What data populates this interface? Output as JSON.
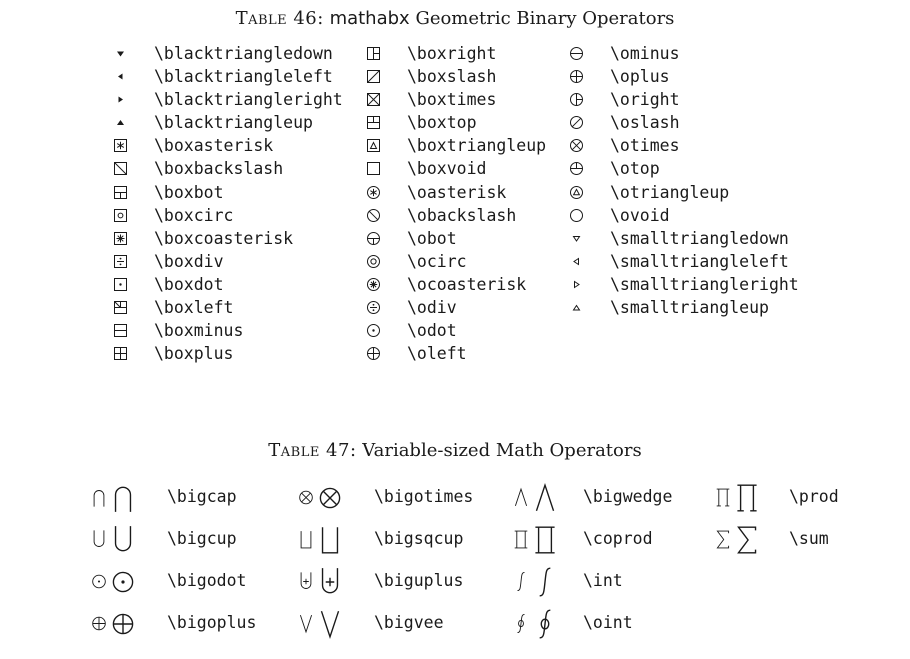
{
  "table46": {
    "caption_prefix": "Table 46:",
    "caption_pkg": "mathabx",
    "caption_rest": "Geometric Binary Operators",
    "columns": [
      [
        {
          "cmd": "\\blacktriangledown",
          "icon": "black-triangle-down-icon"
        },
        {
          "cmd": "\\blacktriangleleft",
          "icon": "black-triangle-left-icon"
        },
        {
          "cmd": "\\blacktriangleright",
          "icon": "black-triangle-right-icon"
        },
        {
          "cmd": "\\blacktriangleup",
          "icon": "black-triangle-up-icon"
        },
        {
          "cmd": "\\boxasterisk",
          "icon": "box-asterisk-icon"
        },
        {
          "cmd": "\\boxbackslash",
          "icon": "box-backslash-icon"
        },
        {
          "cmd": "\\boxbot",
          "icon": "box-bot-icon"
        },
        {
          "cmd": "\\boxcirc",
          "icon": "box-circ-icon"
        },
        {
          "cmd": "\\boxcoasterisk",
          "icon": "box-coasterisk-icon"
        },
        {
          "cmd": "\\boxdiv",
          "icon": "box-div-icon"
        },
        {
          "cmd": "\\boxdot",
          "icon": "box-dot-icon"
        },
        {
          "cmd": "\\boxleft",
          "icon": "box-left-icon"
        },
        {
          "cmd": "\\boxminus",
          "icon": "box-minus-icon"
        },
        {
          "cmd": "\\boxplus",
          "icon": "box-plus-icon"
        }
      ],
      [
        {
          "cmd": "\\boxright",
          "icon": "box-right-icon"
        },
        {
          "cmd": "\\boxslash",
          "icon": "box-slash-icon"
        },
        {
          "cmd": "\\boxtimes",
          "icon": "box-times-icon"
        },
        {
          "cmd": "\\boxtop",
          "icon": "box-top-icon"
        },
        {
          "cmd": "\\boxtriangleup",
          "icon": "box-triangle-up-icon"
        },
        {
          "cmd": "\\boxvoid",
          "icon": "box-void-icon"
        },
        {
          "cmd": "\\oasterisk",
          "icon": "circle-asterisk-icon"
        },
        {
          "cmd": "\\obackslash",
          "icon": "circle-backslash-icon"
        },
        {
          "cmd": "\\obot",
          "icon": "circle-bot-icon"
        },
        {
          "cmd": "\\ocirc",
          "icon": "circle-circ-icon"
        },
        {
          "cmd": "\\ocoasterisk",
          "icon": "circle-coasterisk-icon"
        },
        {
          "cmd": "\\odiv",
          "icon": "circle-div-icon"
        },
        {
          "cmd": "\\odot",
          "icon": "circle-dot-icon"
        },
        {
          "cmd": "\\oleft",
          "icon": "circle-left-icon"
        }
      ],
      [
        {
          "cmd": "\\ominus",
          "icon": "circle-minus-icon"
        },
        {
          "cmd": "\\oplus",
          "icon": "circle-plus-icon"
        },
        {
          "cmd": "\\oright",
          "icon": "circle-right-icon"
        },
        {
          "cmd": "\\oslash",
          "icon": "circle-slash-icon"
        },
        {
          "cmd": "\\otimes",
          "icon": "circle-times-icon"
        },
        {
          "cmd": "\\otop",
          "icon": "circle-top-icon"
        },
        {
          "cmd": "\\otriangleup",
          "icon": "circle-triangle-up-icon"
        },
        {
          "cmd": "\\ovoid",
          "icon": "circle-void-icon"
        },
        {
          "cmd": "\\smalltriangledown",
          "icon": "small-triangle-down-icon"
        },
        {
          "cmd": "\\smalltriangleleft",
          "icon": "small-triangle-left-icon"
        },
        {
          "cmd": "\\smalltriangleright",
          "icon": "small-triangle-right-icon"
        },
        {
          "cmd": "\\smalltriangleup",
          "icon": "small-triangle-up-icon"
        }
      ]
    ]
  },
  "table47": {
    "caption_prefix": "Table 47:",
    "caption_rest": "Variable-sized Math Operators",
    "columns": [
      [
        {
          "cmd": "\\bigcap",
          "icon": "big-cap-icon"
        },
        {
          "cmd": "\\bigcup",
          "icon": "big-cup-icon"
        },
        {
          "cmd": "\\bigodot",
          "icon": "big-odot-icon"
        },
        {
          "cmd": "\\bigoplus",
          "icon": "big-oplus-icon"
        }
      ],
      [
        {
          "cmd": "\\bigotimes",
          "icon": "big-otimes-icon"
        },
        {
          "cmd": "\\bigsqcup",
          "icon": "big-sqcup-icon"
        },
        {
          "cmd": "\\biguplus",
          "icon": "big-uplus-icon"
        },
        {
          "cmd": "\\bigvee",
          "icon": "big-vee-icon"
        }
      ],
      [
        {
          "cmd": "\\bigwedge",
          "icon": "big-wedge-icon"
        },
        {
          "cmd": "\\coprod",
          "icon": "coprod-icon"
        },
        {
          "cmd": "\\int",
          "icon": "integral-icon"
        },
        {
          "cmd": "\\oint",
          "icon": "contour-integral-icon"
        }
      ],
      [
        {
          "cmd": "\\prod",
          "icon": "prod-icon"
        },
        {
          "cmd": "\\sum",
          "icon": "sum-icon"
        }
      ]
    ]
  }
}
